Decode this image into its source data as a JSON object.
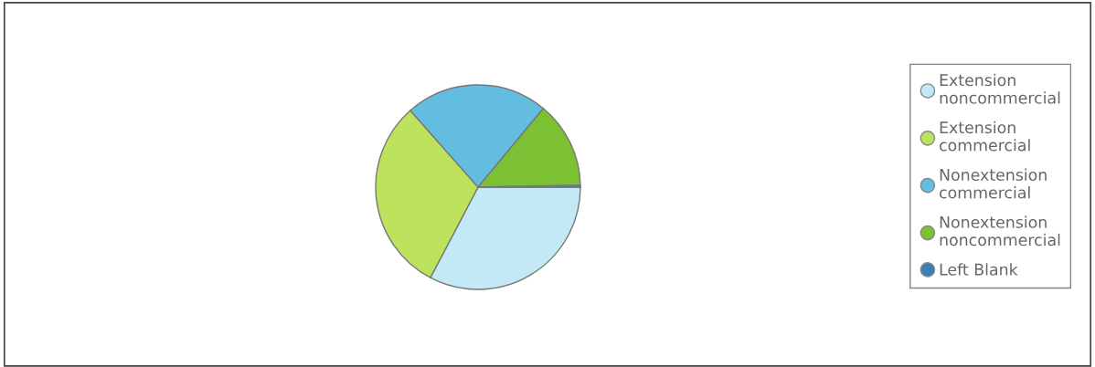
{
  "chart_data": {
    "type": "pie",
    "categories": [
      "Extension\nnoncommercial",
      "Extension\ncommercial",
      "Nonextension\ncommercial",
      "Nonextension\nnoncommercial",
      "Left Blank"
    ],
    "values": [
      32.7,
      30.8,
      22.5,
      13.7,
      0.3
    ],
    "colors": [
      "#c4e9f6",
      "#bde25c",
      "#62bde0",
      "#7cc133",
      "#3a7fb8"
    ],
    "legend": "right"
  }
}
